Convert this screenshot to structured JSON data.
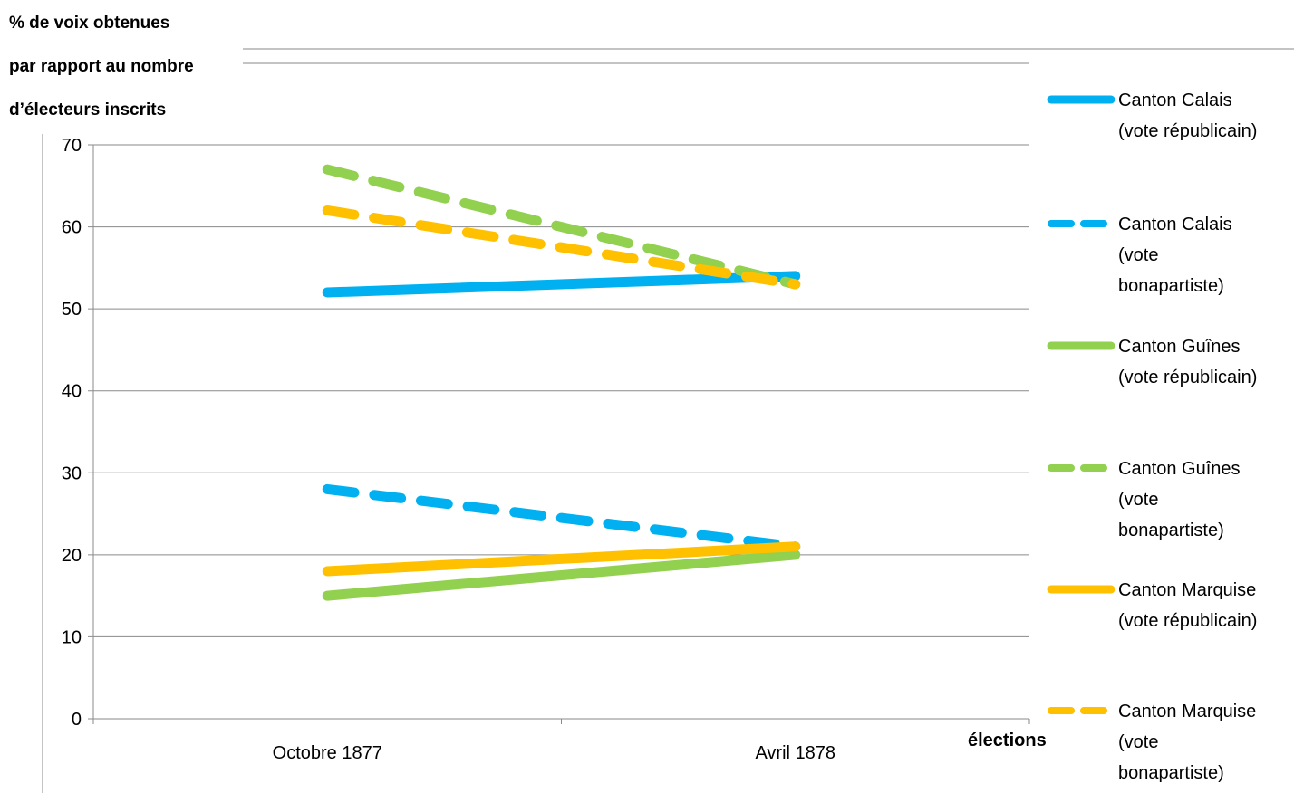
{
  "chart_data": {
    "type": "line",
    "title_lines": [
      "% de voix obtenues",
      "par rapport au nombre",
      "d’électeurs inscrits"
    ],
    "xlabel": "élections",
    "categories": [
      "Octobre 1877",
      "Avril 1878"
    ],
    "ylim": [
      0,
      70
    ],
    "yticks": [
      0,
      10,
      20,
      30,
      40,
      50,
      60,
      70
    ],
    "grid": true,
    "legend_position": "right",
    "series": [
      {
        "name": "Canton Calais (vote républicain)",
        "legend_lines": [
          "Canton Calais",
          "(vote républicain)"
        ],
        "color": "#00B0F0",
        "dash": false,
        "values": [
          52,
          54
        ]
      },
      {
        "name": "Canton Calais (vote bonapartiste)",
        "legend_lines": [
          "Canton Calais",
          "(vote",
          "bonapartiste)"
        ],
        "color": "#00B0F0",
        "dash": true,
        "values": [
          28,
          21
        ]
      },
      {
        "name": "Canton Guînes (vote républicain)",
        "legend_lines": [
          "Canton Guînes",
          "(vote républicain)"
        ],
        "color": "#92D050",
        "dash": false,
        "values": [
          15,
          20
        ]
      },
      {
        "name": "Canton Guînes (vote bonapartiste)",
        "legend_lines": [
          "Canton Guînes",
          "(vote",
          "bonapartiste)"
        ],
        "color": "#92D050",
        "dash": true,
        "values": [
          67,
          53
        ]
      },
      {
        "name": "Canton Marquise (vote républicain)",
        "legend_lines": [
          "Canton Marquise",
          "(vote républicain)"
        ],
        "color": "#FFC000",
        "dash": false,
        "values": [
          18,
          21
        ]
      },
      {
        "name": "Canton Marquise (vote bonapartiste)",
        "legend_lines": [
          "Canton Marquise",
          "(vote",
          "bonapartiste)"
        ],
        "color": "#FFC000",
        "dash": true,
        "values": [
          62,
          53
        ]
      }
    ]
  }
}
